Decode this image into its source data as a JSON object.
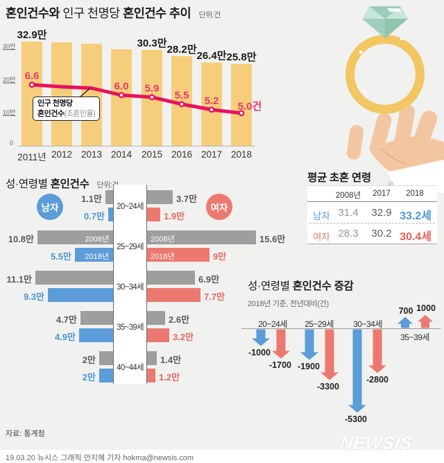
{
  "page": {
    "background": "#f1f1ef",
    "colors": {
      "bar_yellow": "#f6ce7b",
      "line_pink": "#e9115d",
      "male_blue": "#5b9cd9",
      "female_red": "#ec796f",
      "neutral_gray_bar": "#9e9e9e"
    }
  },
  "chart_data": [
    {
      "id": "marriage_trend",
      "type": "bar",
      "title": "혼인건수와 인구 천명당 혼인건수 추이",
      "title_parts": [
        "혼인건수와",
        "인구 천명당",
        "혼인건수 추이"
      ],
      "unit": "단위:건",
      "categories": [
        "2011년",
        "2012",
        "2013",
        "2014",
        "2015",
        "2016",
        "2017",
        "2018"
      ],
      "y_axis_ticks": [
        "30만",
        "20만",
        "10만",
        "0"
      ],
      "bar_series": {
        "name": "혼인건수",
        "values_man": [
          32.9,
          32.7,
          32.3,
          30.5,
          30.3,
          28.2,
          26.4,
          25.8
        ],
        "labels": [
          "32.9만",
          "",
          "",
          "",
          "30.3만",
          "28.2만",
          "26.4만",
          "25.8만"
        ]
      },
      "line_series": {
        "name": "인구 천명당 혼인건수(조혼인율)",
        "values": [
          6.6,
          6.5,
          6.4,
          6.0,
          5.9,
          5.5,
          5.2,
          5.0
        ],
        "labels": [
          "6.6",
          "",
          "",
          "6.0",
          "5.9",
          "5.5",
          "5.2",
          "5.0건"
        ]
      },
      "callout": {
        "line1": "인구 천명당",
        "line2_bold": "혼인건수",
        "line2_rest": "(조혼인율)"
      }
    },
    {
      "id": "marriages_by_gender_age",
      "type": "bar",
      "title": "성·연령별 혼인건수",
      "title_parts": [
        "성·연령별",
        "혼인건수"
      ],
      "unit": "단위:건",
      "male_label": "남자",
      "female_label": "여자",
      "year_labels": {
        "old": "2008년",
        "new": "2018년"
      },
      "age_groups": [
        "20~24세",
        "25~29세",
        "30~34세",
        "35~39세",
        "40~44세"
      ],
      "male": {
        "y2008_man": [
          1.1,
          10.8,
          11.1,
          4.7,
          2.0
        ],
        "y2018_man": [
          0.7,
          5.5,
          9.3,
          4.9,
          2.0
        ],
        "labels_2008": [
          "1.1만",
          "10.8만",
          "11.1만",
          "4.7만",
          "2만"
        ],
        "labels_2018": [
          "0.7만",
          "5.5만",
          "9.3만",
          "4.9만",
          "2만"
        ]
      },
      "female": {
        "y2008_man": [
          3.7,
          15.6,
          6.9,
          2.6,
          1.4
        ],
        "y2018_man": [
          1.9,
          9.0,
          7.7,
          3.2,
          1.2
        ],
        "labels_2008": [
          "3.7만",
          "15.6만",
          "6.9만",
          "2.6만",
          "1.4만"
        ],
        "labels_2018": [
          "1.9만",
          "9만",
          "7.7만",
          "3.2만",
          "1.2만"
        ]
      }
    },
    {
      "id": "avg_first_marriage_age",
      "type": "table",
      "title": "평균 초혼 연령",
      "columns": [
        "2008년",
        "2017",
        "2018"
      ],
      "rows": [
        {
          "label": "남자",
          "values": [
            "31.4",
            "32.9",
            "33.2세"
          ]
        },
        {
          "label": "여자",
          "values": [
            "28.3",
            "30.2",
            "30.4세"
          ]
        }
      ]
    },
    {
      "id": "marriage_change_by_gender_age",
      "type": "bar",
      "title": "성·연령별 혼인건수 증감",
      "title_parts": [
        "성·연령별",
        "혼인건수 증감"
      ],
      "subtitle": "2018년 기준, 전년대비(건)",
      "categories": [
        "20~24세",
        "25~29세",
        "30~34세",
        "35~39세"
      ],
      "series": [
        {
          "name": "남자",
          "values": [
            -1000,
            -1900,
            -5300,
            700
          ],
          "labels": [
            "-1000",
            "-1900",
            "-5300",
            "700"
          ]
        },
        {
          "name": "여자",
          "values": [
            -1700,
            -3300,
            -2800,
            1000
          ],
          "labels": [
            "-1700",
            "-3300",
            "-2800",
            "1000"
          ]
        }
      ]
    }
  ],
  "footer": {
    "source": "자료: 통계청",
    "credit": "19.03.20 뉴시스 그래픽 안지혜 기자 hokma@newsis.com",
    "logo": "NEWSIS"
  }
}
